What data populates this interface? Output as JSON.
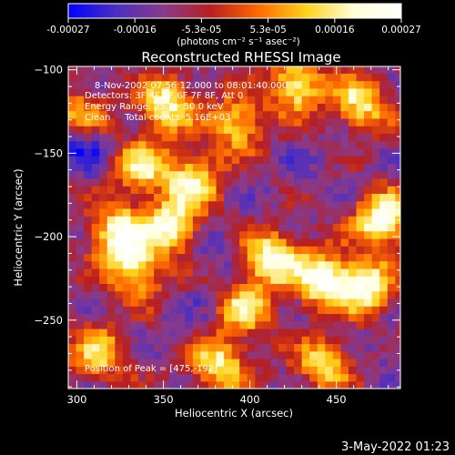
{
  "chart_data": {
    "type": "heatmap",
    "title": "Reconstructed RHESSI Image",
    "xlabel": "Heliocentric X (arcsec)",
    "ylabel": "Heliocentric Y (arcsec)",
    "xlim": [
      295,
      487
    ],
    "ylim": [
      -291,
      -98
    ],
    "xticks": [
      300,
      350,
      400,
      450
    ],
    "yticks": [
      -100,
      -150,
      -200,
      -250
    ],
    "colorbar": {
      "ticks": [
        "-0.00027",
        "-0.00016",
        "-5.3e-05",
        "5.3e-05",
        "0.00016",
        "0.00027"
      ],
      "range": [
        -0.00027,
        0.00027
      ],
      "unit_label": "(photons cm⁻² s⁻¹ asec⁻²)",
      "colormap": [
        "#0000ff",
        "#4b2fc0",
        "#8a3a8a",
        "#b81f1f",
        "#ff6a00",
        "#ffd21a",
        "#ffffd9",
        "#ffffff"
      ]
    },
    "annotations": {
      "time_range": "8-Nov-2002 07:56:12.000 to 08:01:40.000",
      "detectors": "Detectors: 3F 4F 5F 6F 7F 8F, Att 0",
      "energy": "Energy Range: 25.0 - 50.0 keV",
      "clean": "Clean     Total counts: 5.16E+03",
      "peak": "Position of Peak = [475,-192]"
    },
    "peak": [
      475,
      -192
    ],
    "grid": false,
    "bright_sources": [
      {
        "x": 350,
        "y": -123,
        "v": 0.0002
      },
      {
        "x": 322,
        "y": -200,
        "v": 0.00024
      },
      {
        "x": 352,
        "y": -195,
        "v": 0.00022
      },
      {
        "x": 332,
        "y": -222,
        "v": 0.00018
      },
      {
        "x": 365,
        "y": -168,
        "v": 0.00019
      },
      {
        "x": 410,
        "y": -215,
        "v": 0.00024
      },
      {
        "x": 440,
        "y": -228,
        "v": 0.00026
      },
      {
        "x": 475,
        "y": -192,
        "v": 0.00027
      },
      {
        "x": 465,
        "y": -232,
        "v": 0.00022
      },
      {
        "x": 425,
        "y": -112,
        "v": 0.0002
      },
      {
        "x": 462,
        "y": -122,
        "v": 0.00017
      },
      {
        "x": 390,
        "y": -135,
        "v": 0.00015
      },
      {
        "x": 380,
        "y": -278,
        "v": 0.00018
      },
      {
        "x": 440,
        "y": -278,
        "v": 0.00014
      },
      {
        "x": 310,
        "y": -272,
        "v": 0.00013
      },
      {
        "x": 395,
        "y": -245,
        "v": 0.00014
      },
      {
        "x": 335,
        "y": -160,
        "v": 0.00016
      },
      {
        "x": 300,
        "y": -130,
        "v": 0.00012
      }
    ],
    "dark_sources": [
      {
        "x": 300,
        "y": -145,
        "v": -0.00027
      },
      {
        "x": 378,
        "y": -210,
        "v": -0.00016
      },
      {
        "x": 360,
        "y": -255,
        "v": -0.00014
      },
      {
        "x": 440,
        "y": -160,
        "v": -0.00014
      },
      {
        "x": 410,
        "y": -175,
        "v": -0.00012
      },
      {
        "x": 480,
        "y": -270,
        "v": -0.00015
      },
      {
        "x": 370,
        "y": -105,
        "v": -0.0001
      }
    ]
  },
  "footer_date": "3-May-2022 01:23",
  "colors": {
    "background": "#000000",
    "foreground": "#ffffff"
  }
}
